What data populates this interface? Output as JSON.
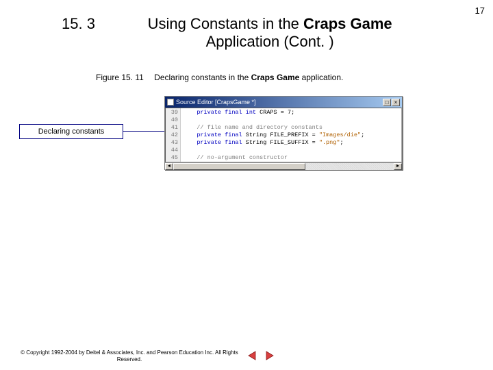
{
  "page_number": "17",
  "section": {
    "number": "15. 3",
    "title_prefix": "Using Constants in the ",
    "title_bold": "Craps Game",
    "title_suffix": " Application (Cont. )"
  },
  "figure": {
    "label": "Figure 15. 11",
    "caption_prefix": "Declaring constants in the ",
    "caption_bold": "Craps Game",
    "caption_suffix": " application."
  },
  "callout": {
    "text": "Declaring constants"
  },
  "editor": {
    "title": "Source Editor [CrapsGame *]",
    "line_numbers": [
      "39",
      "40",
      "41",
      "42",
      "43",
      "44",
      "45"
    ],
    "lines": [
      {
        "indent": "   ",
        "segments": [
          {
            "cls": "kw",
            "t": "private final int"
          },
          {
            "cls": "",
            "t": " CRAPS = "
          },
          {
            "cls": "",
            "t": "7"
          },
          {
            "cls": "",
            "t": ";"
          }
        ]
      },
      {
        "indent": "",
        "segments": []
      },
      {
        "indent": "   ",
        "segments": [
          {
            "cls": "cmt",
            "t": "// file name and directory constants"
          }
        ]
      },
      {
        "indent": "   ",
        "segments": [
          {
            "cls": "kw",
            "t": "private final"
          },
          {
            "cls": "",
            "t": " String FILE_PREFIX = "
          },
          {
            "cls": "str",
            "t": "\"Images/die\""
          },
          {
            "cls": "",
            "t": ";"
          }
        ]
      },
      {
        "indent": "   ",
        "segments": [
          {
            "cls": "kw",
            "t": "private final"
          },
          {
            "cls": "",
            "t": " String FILE_SUFFIX = "
          },
          {
            "cls": "str",
            "t": "\".png\""
          },
          {
            "cls": "",
            "t": ";"
          }
        ]
      },
      {
        "indent": "",
        "segments": []
      },
      {
        "indent": "   ",
        "segments": [
          {
            "cls": "cmt",
            "t": "// no-argument constructor"
          }
        ]
      }
    ],
    "close_x": "×",
    "max_btn": "□",
    "scroll_left": "◄",
    "scroll_right": "►"
  },
  "footer": {
    "text": "© Copyright 1992-2004 by Deitel & Associates, Inc. and Pearson Education Inc. All Rights Reserved."
  },
  "colors": {
    "nav_arrow_fill": "#d94040",
    "nav_arrow_stroke": "#8b1a1a"
  }
}
